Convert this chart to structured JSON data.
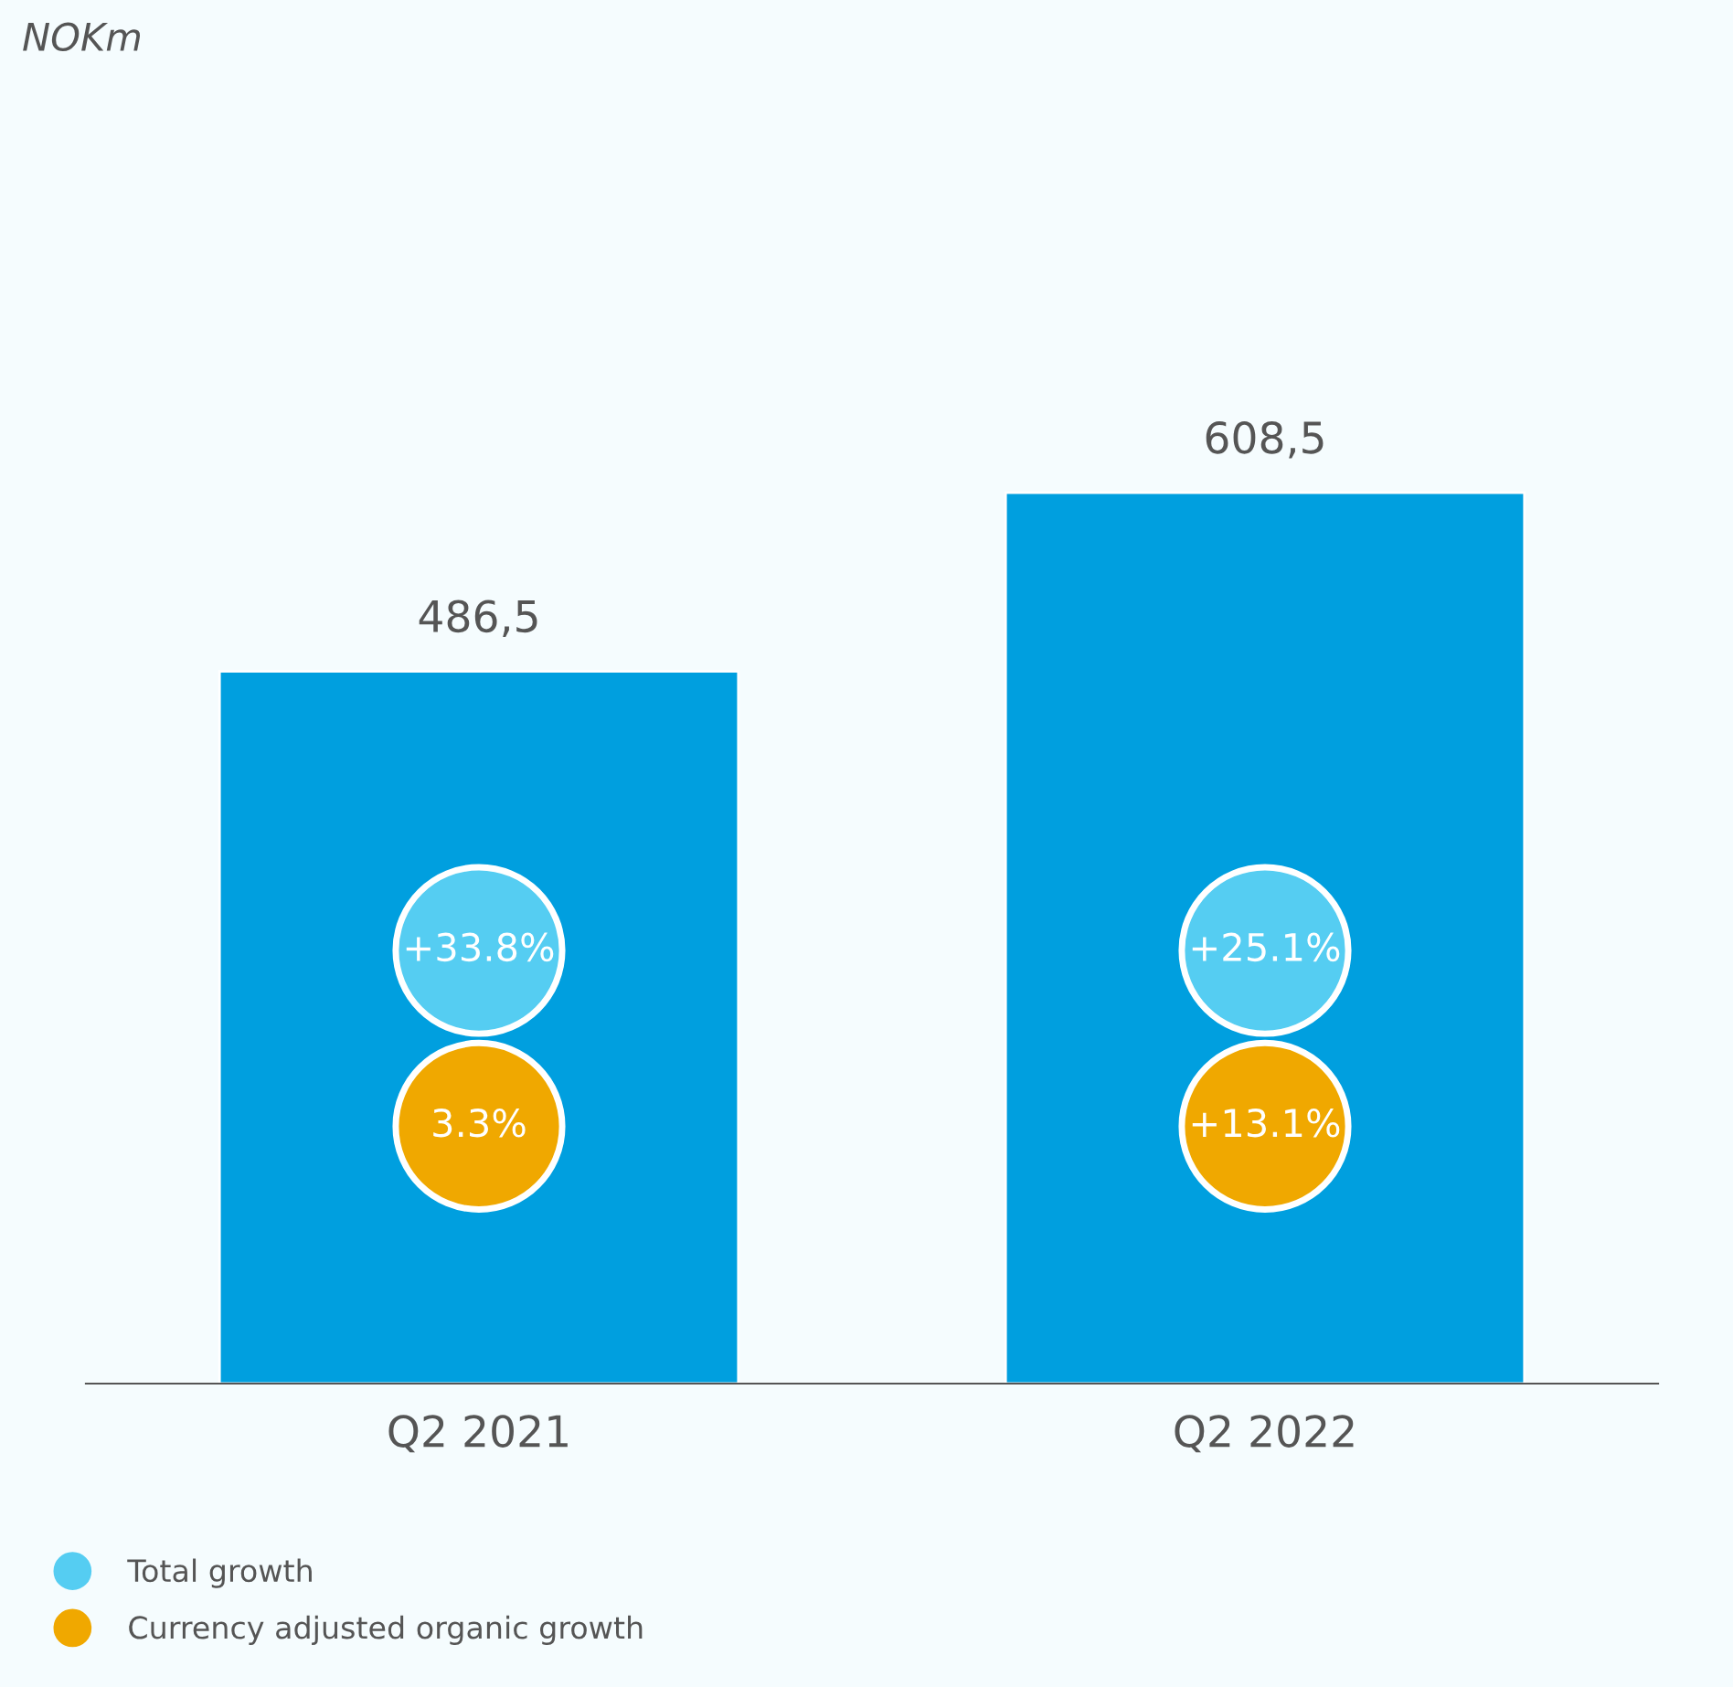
{
  "chart_data": {
    "type": "bar",
    "categories": [
      "Q2 2021",
      "Q2 2022"
    ],
    "series": [
      {
        "type": "bar",
        "color": "#009fdf",
        "values": [
          486.5,
          608.5
        ],
        "value_labels": [
          "486,5",
          "608,5"
        ]
      },
      {
        "type": "scatter",
        "name": "Total growth",
        "color": "#55cdf2",
        "values": [
          null,
          null
        ]
      },
      {
        "type": "scatter",
        "name": "Currency adjusted organic growth",
        "color": "#f0a800",
        "values": [
          null,
          null
        ]
      }
    ],
    "annotations": [
      "NOKm",
      "+33.8%",
      "3.3%",
      "+25.1%",
      "+13.1%"
    ],
    "legend": "bottom left",
    "grid": false
  }
}
